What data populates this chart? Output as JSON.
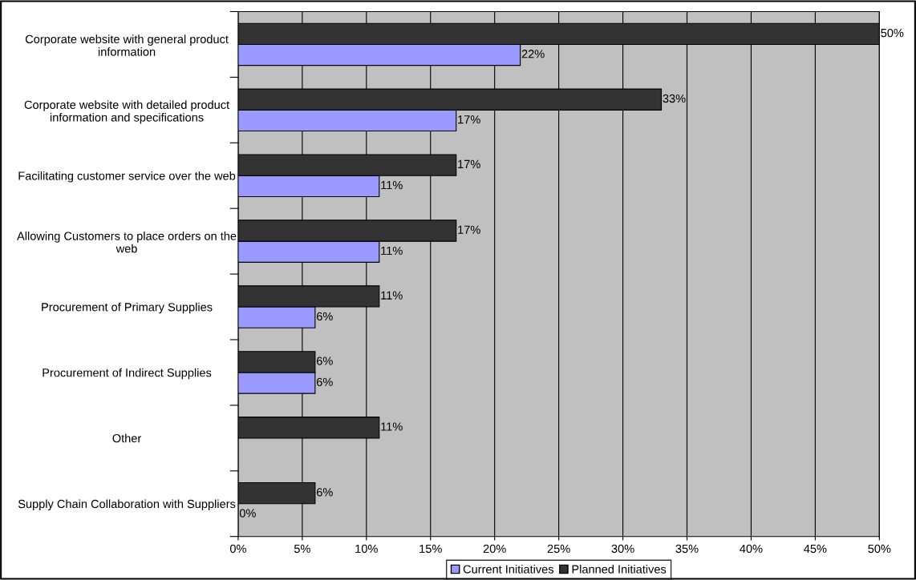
{
  "chart_data": {
    "type": "bar",
    "orientation": "horizontal",
    "categories": [
      "Corporate website with general product\ninformation",
      "Corporate website with detailed product\ninformation and specifications",
      "Facilitating customer service over the web",
      "Allowing Customers to place orders on the\nweb",
      "Procurement of Primary Supplies",
      "Procurement of Indirect Supplies",
      "Other",
      "Supply Chain Collaboration with Suppliers"
    ],
    "series": [
      {
        "name": "Current Initiatives",
        "color": "#9999ff",
        "values": [
          22,
          17,
          11,
          11,
          6,
          6,
          null,
          0
        ],
        "value_labels": [
          "22%",
          "17%",
          "11%",
          "11%",
          "6%",
          "6%",
          null,
          "0%"
        ]
      },
      {
        "name": "Planned Initiatives",
        "color": "#333333",
        "values": [
          50,
          33,
          17,
          17,
          11,
          6,
          11,
          6
        ],
        "value_labels": [
          "50%",
          "33%",
          "17%",
          "17%",
          "11%",
          "6%",
          "11%",
          "6%"
        ]
      }
    ],
    "xlim": [
      0,
      50
    ],
    "xticks": [
      {
        "value": 0,
        "label": "0%"
      },
      {
        "value": 5,
        "label": "5%"
      },
      {
        "value": 10,
        "label": "10%"
      },
      {
        "value": 15,
        "label": "15%"
      },
      {
        "value": 20,
        "label": "20%"
      },
      {
        "value": 25,
        "label": "25%"
      },
      {
        "value": 30,
        "label": "30%"
      },
      {
        "value": 35,
        "label": "35%"
      },
      {
        "value": 40,
        "label": "40%"
      },
      {
        "value": 45,
        "label": "45%"
      },
      {
        "value": 50,
        "label": "50%"
      }
    ],
    "grid": "x",
    "legend": "bottom"
  }
}
